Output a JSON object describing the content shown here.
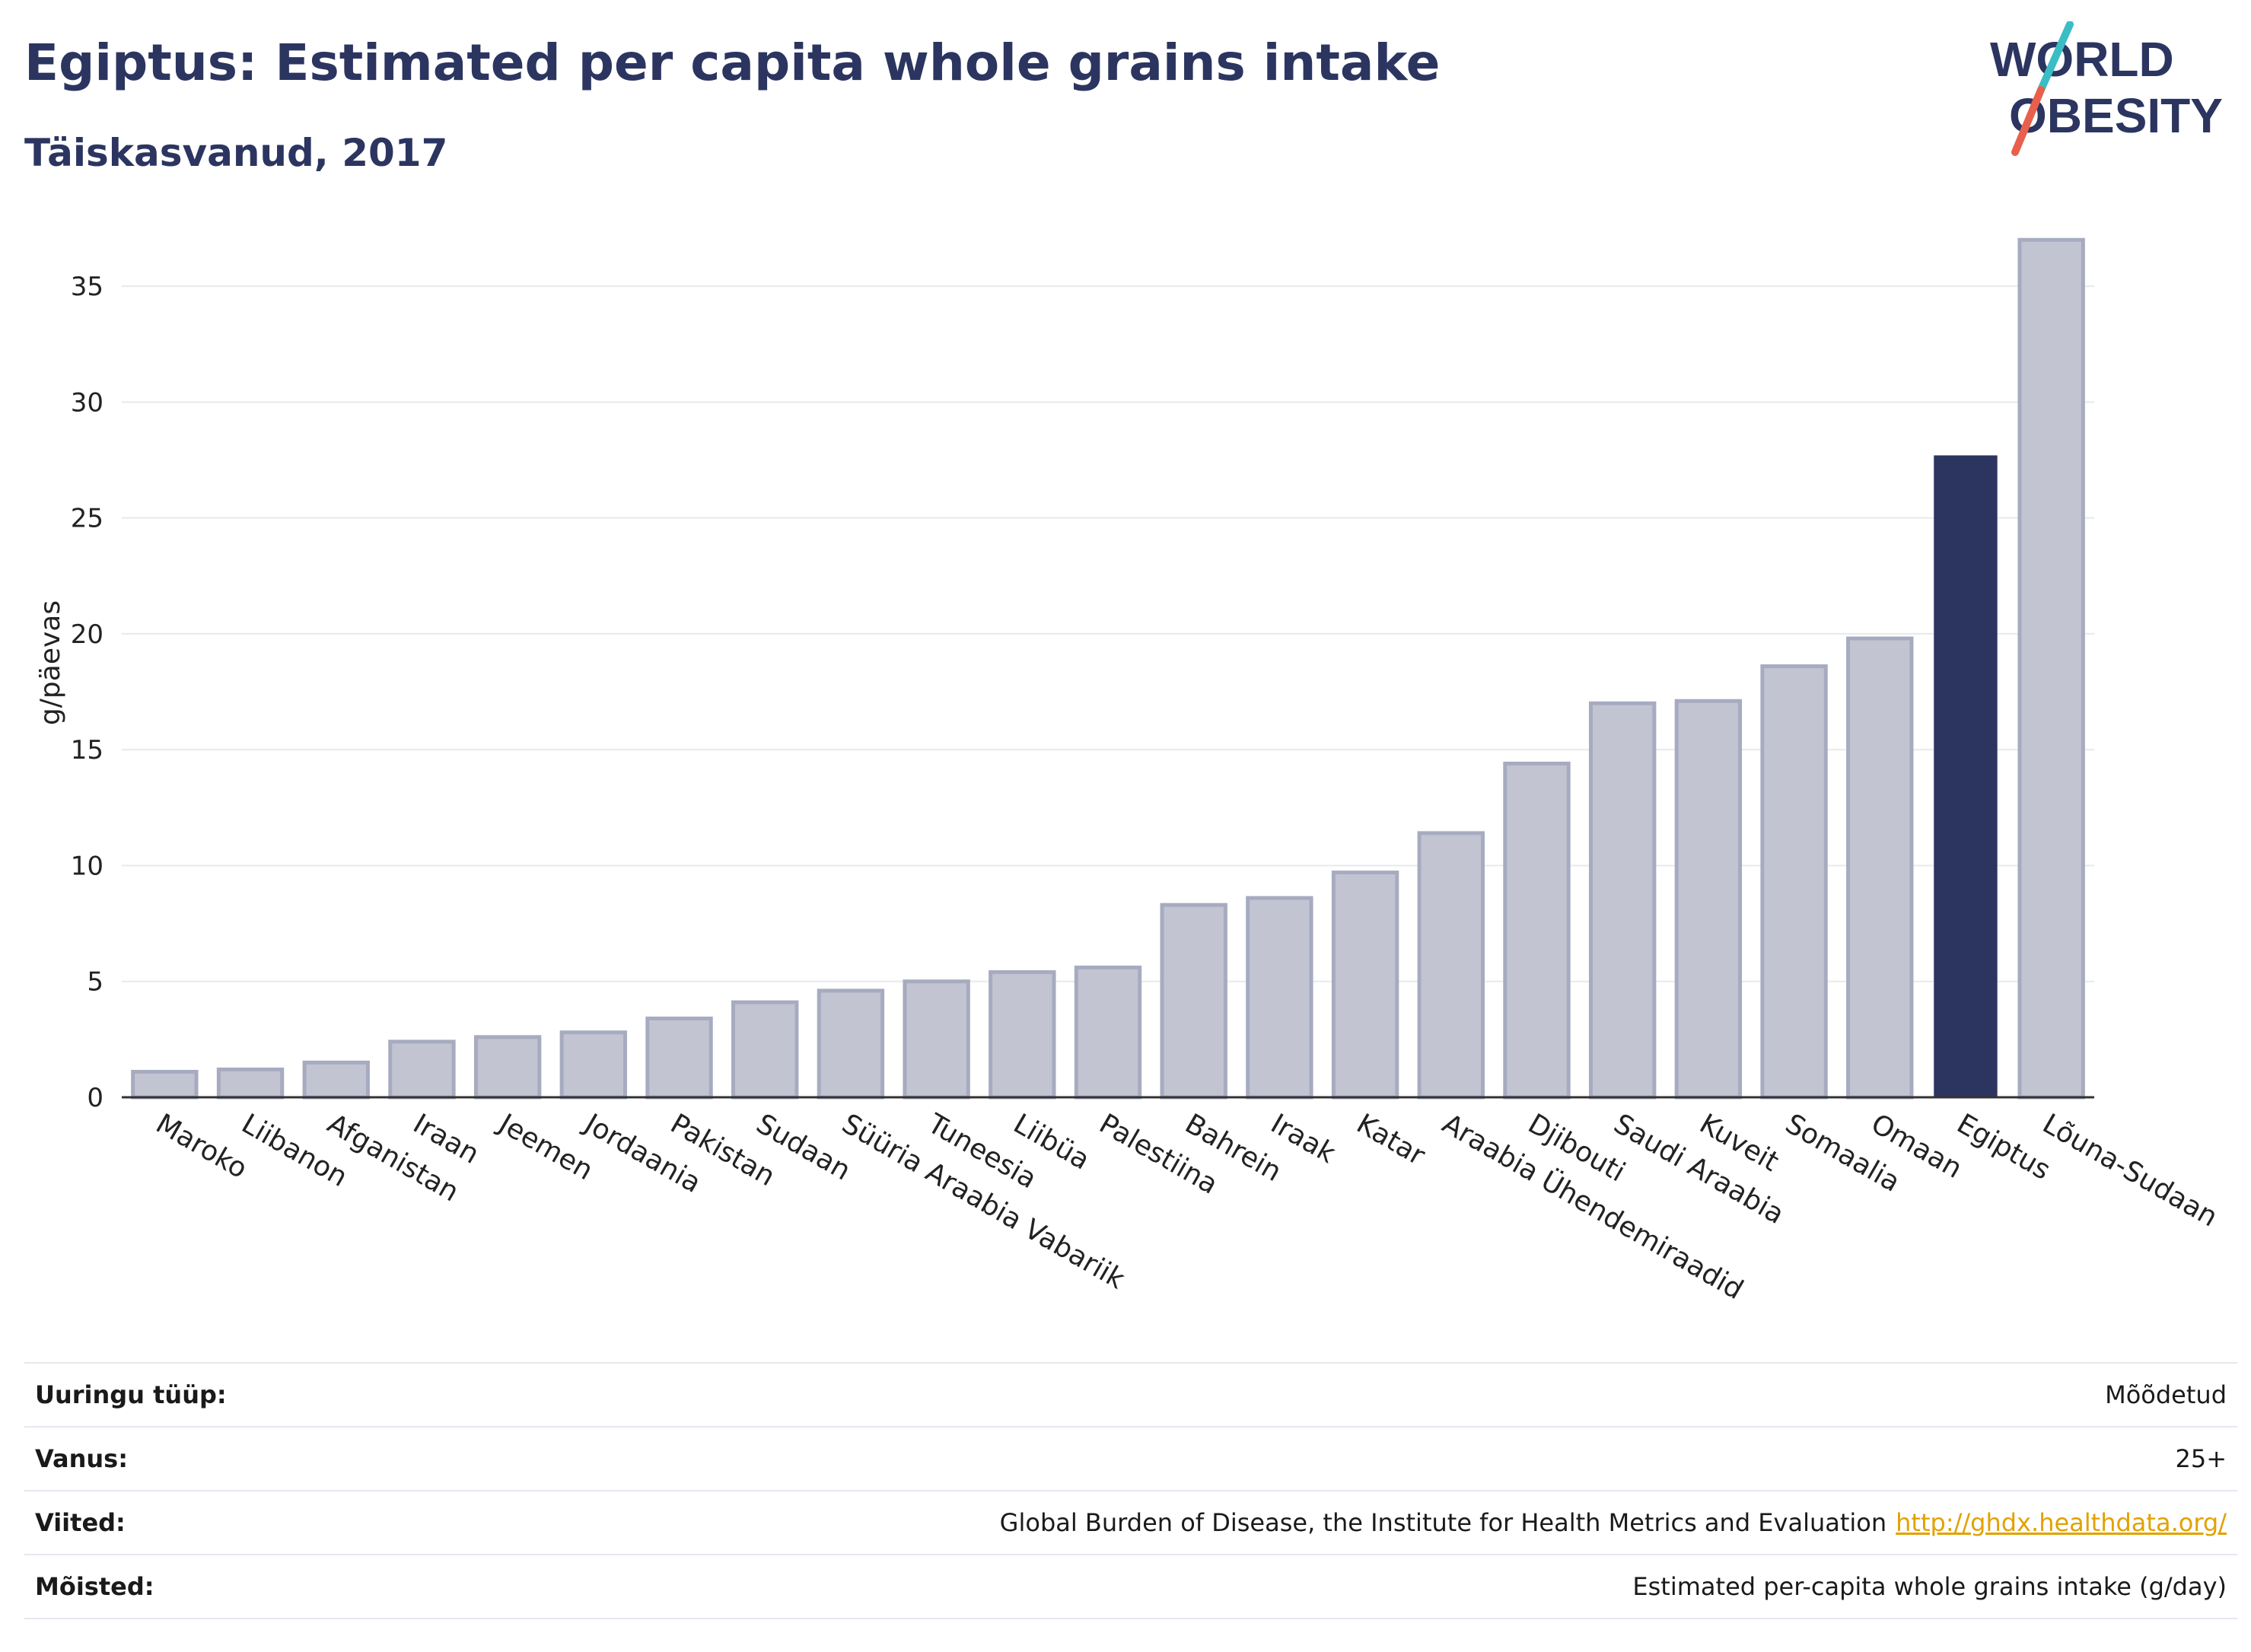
{
  "header": {
    "title": "Egiptus: Estimated per capita whole grains intake",
    "subtitle": "Täiskasvanud, 2017"
  },
  "logo": {
    "line1": "WORLD",
    "line2": "OBESITY",
    "colors": {
      "text": "#2b3560",
      "slash_teal": "#3bbdc6",
      "slash_red": "#e8604c"
    }
  },
  "chart_data": {
    "type": "bar",
    "ylabel": "g/päevas",
    "xlabel": "",
    "ylim": [
      0,
      37.5
    ],
    "yticks": [
      0,
      5,
      10,
      15,
      20,
      25,
      30,
      35
    ],
    "grid": true,
    "categories": [
      "Maroko",
      "Liibanon",
      "Afganistan",
      "Iraan",
      "Jeemen",
      "Jordaania",
      "Pakistan",
      "Sudaan",
      "Süüria Araabia Vabariik",
      "Tuneesia",
      "Liibüa",
      "Palestiina",
      "Bahrein",
      "Iraak",
      "Katar",
      "Araabia Ühendemiraadid",
      "Djibouti",
      "Saudi Araabia",
      "Kuveit",
      "Somaalia",
      "Omaan",
      "Egiptus",
      "Lõuna-Sudaan"
    ],
    "values": [
      1.1,
      1.2,
      1.5,
      2.4,
      2.6,
      2.8,
      3.4,
      4.1,
      4.6,
      5.0,
      5.4,
      5.6,
      8.3,
      8.6,
      9.7,
      11.4,
      14.4,
      17.0,
      17.1,
      18.6,
      19.8,
      27.7,
      37.0
    ],
    "highlight": "Egiptus",
    "colors": {
      "bar": "#c2c4d2",
      "bar_border": "#a7abc0",
      "highlight": "#2b3560"
    }
  },
  "meta": {
    "rows": [
      {
        "label": "Uuringu tüüp:",
        "value": "Mõõdetud"
      },
      {
        "label": "Vanus:",
        "value": "25+"
      },
      {
        "label": "Viited:",
        "value": "Global Burden of Disease, the Institute for Health Metrics and Evaluation",
        "link": "http://ghdx.healthdata.org/"
      },
      {
        "label": "Mõisted:",
        "value": "Estimated per-capita whole grains intake (g/day)"
      }
    ]
  }
}
